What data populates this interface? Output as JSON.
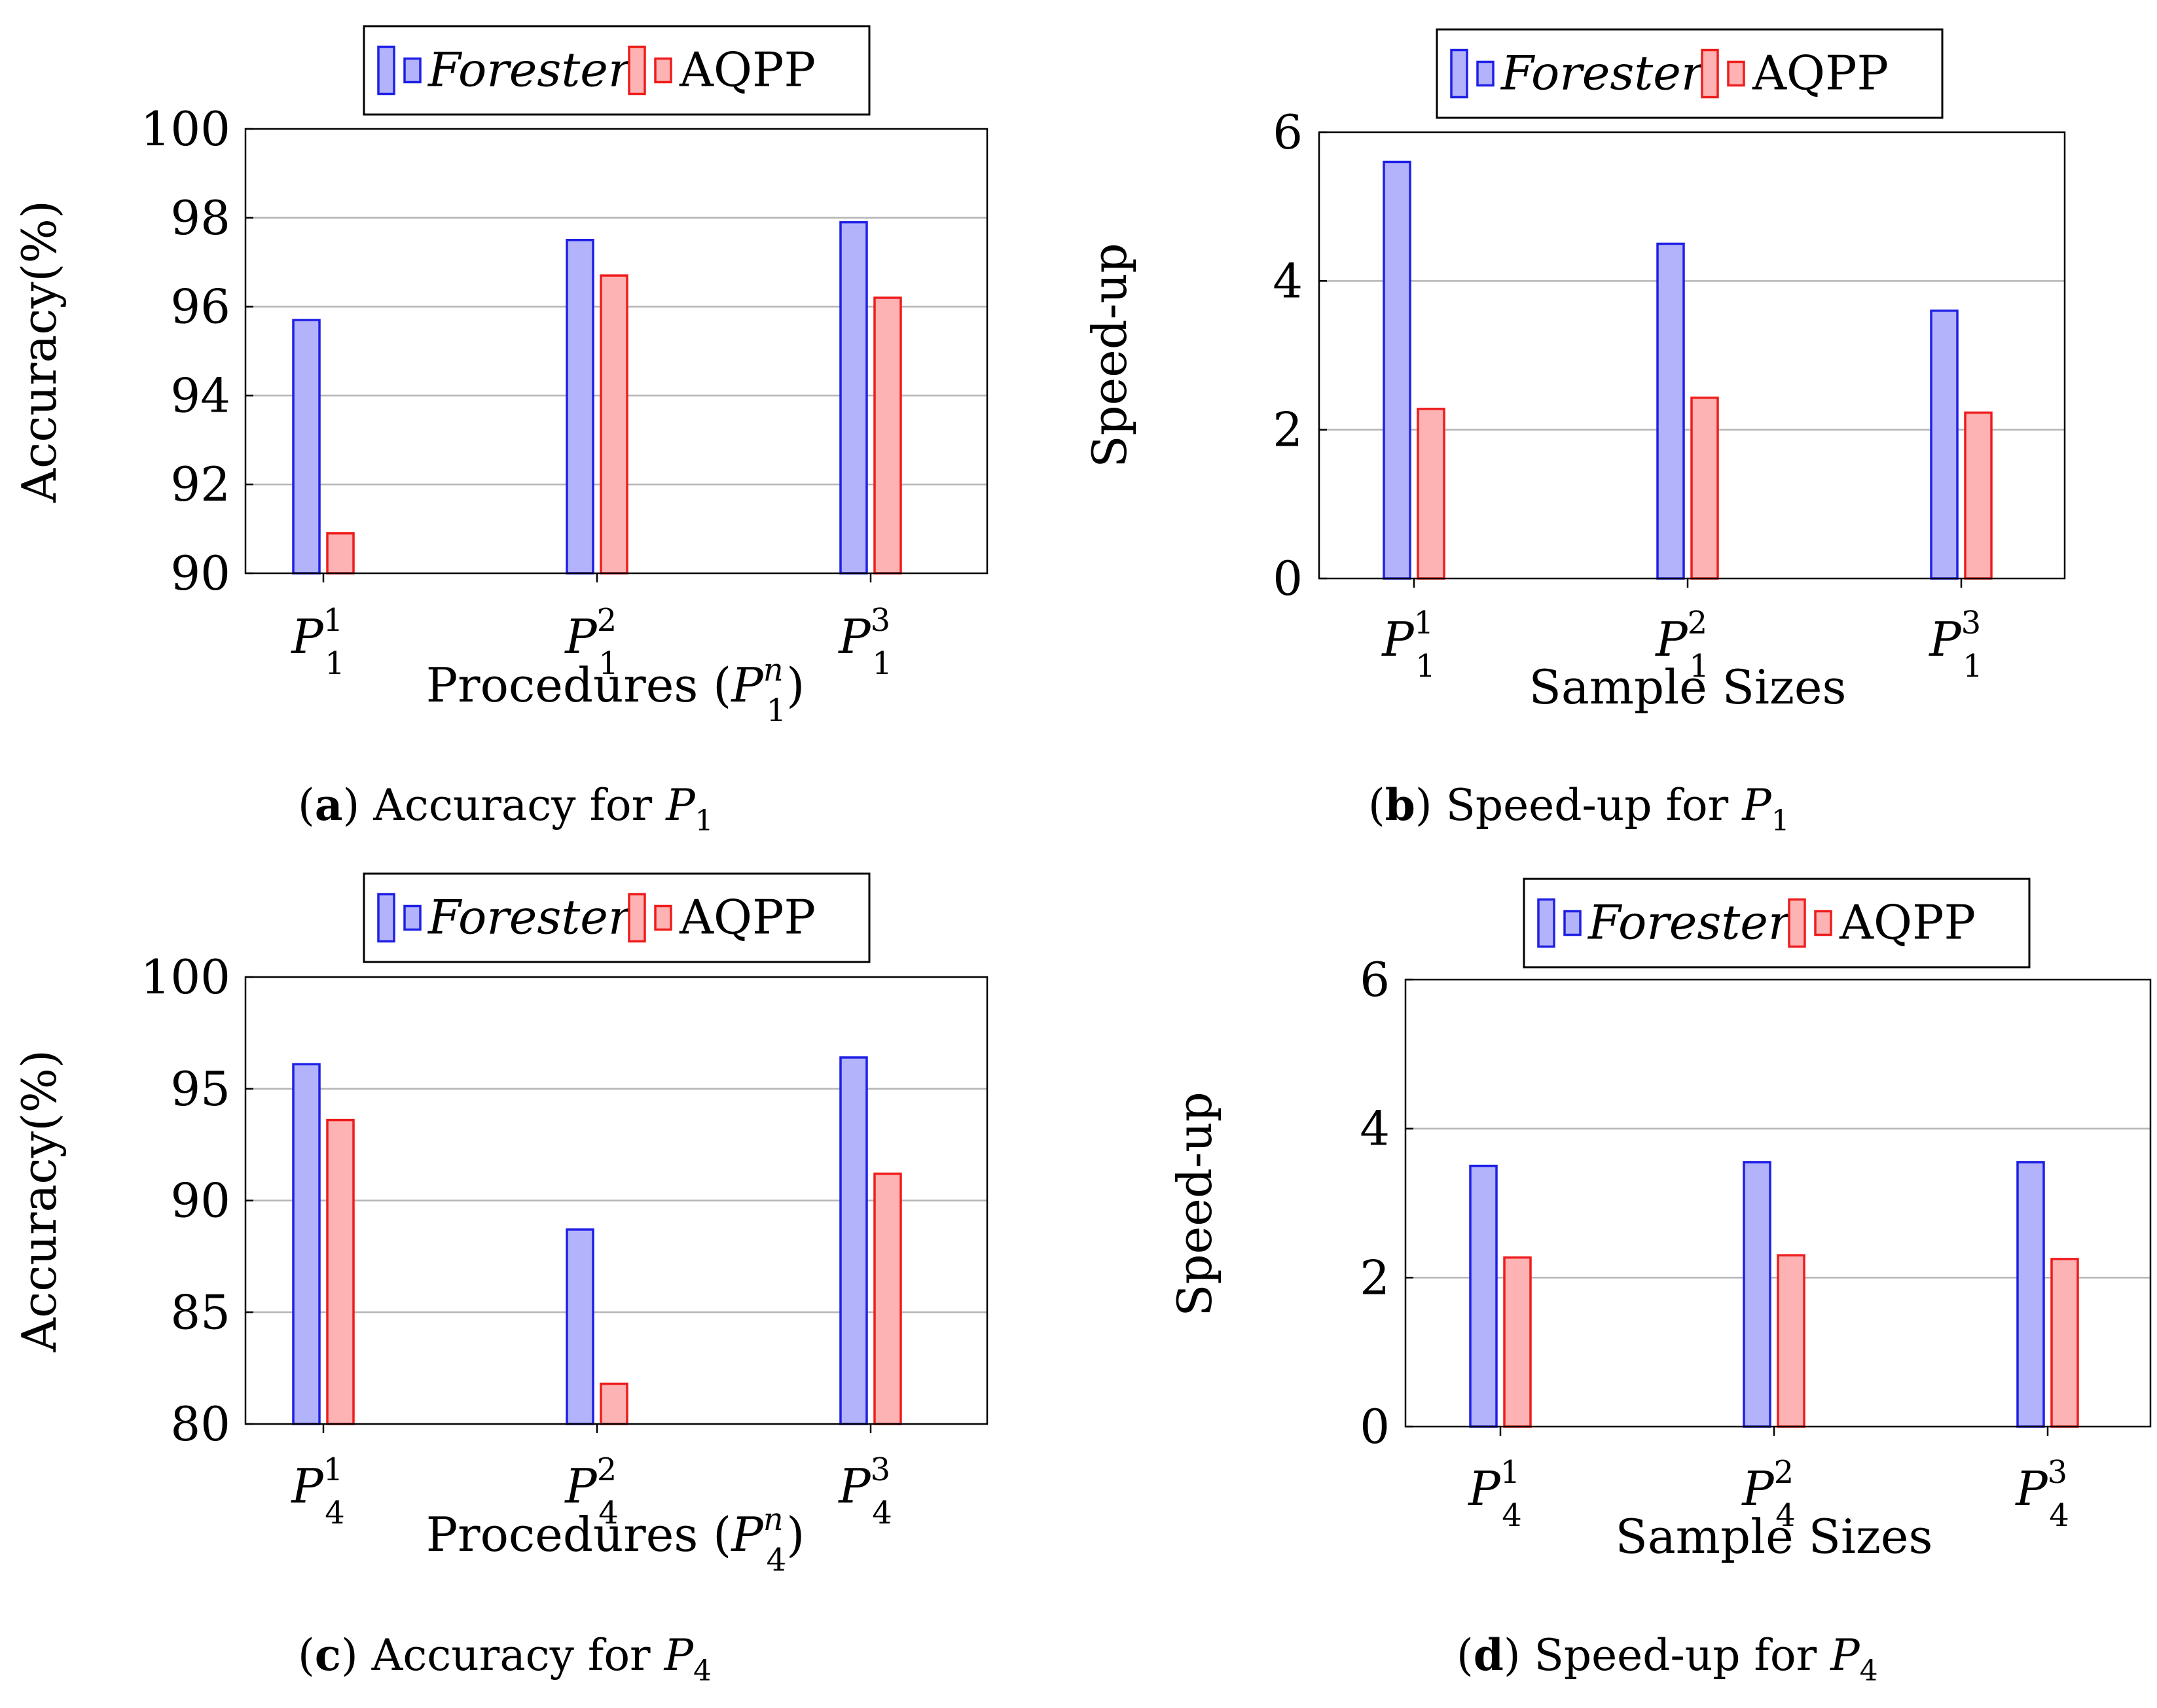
{
  "colors": {
    "forester_fill": "#b3b3fb",
    "forester_stroke": "#1f1fe6",
    "aqpp_fill": "#fdb3b3",
    "aqpp_stroke": "#ee1c1c"
  },
  "chart_data": [
    {
      "type": "bar",
      "panel": "a",
      "caption_letter": "a",
      "caption_text": "Accuracy for",
      "caption_var": "P",
      "caption_sub": "1",
      "legend": [
        "Forester",
        "AQPP"
      ],
      "categories": [
        "P_1^1",
        "P_1^2",
        "P_1^3"
      ],
      "category_base": "P",
      "category_sub": "1",
      "category_sup": [
        "1",
        "2",
        "3"
      ],
      "series": [
        {
          "name": "Forester",
          "values": [
            95.7,
            97.5,
            97.9
          ]
        },
        {
          "name": "AQPP",
          "values": [
            90.9,
            96.7,
            96.2
          ]
        }
      ],
      "ylabel": "Accuracy(%)",
      "xlabel_text": "Procedures (",
      "xlabel_var": "P",
      "xlabel_sub": "1",
      "xlabel_sup": "n",
      "xlabel_close": ")",
      "ylim": [
        90,
        100
      ],
      "yticks": [
        "90",
        "92",
        "94",
        "96",
        "98",
        "100"
      ],
      "grid": true
    },
    {
      "type": "bar",
      "panel": "b",
      "caption_letter": "b",
      "caption_text": "Speed-up for",
      "caption_var": "P",
      "caption_sub": "1",
      "legend": [
        "Forester",
        "AQPP"
      ],
      "categories": [
        "P_1^1",
        "P_1^2",
        "P_1^3"
      ],
      "category_base": "P",
      "category_sub": "1",
      "category_sup": [
        "1",
        "2",
        "3"
      ],
      "series": [
        {
          "name": "Forester",
          "values": [
            5.6,
            4.5,
            3.6
          ]
        },
        {
          "name": "AQPP",
          "values": [
            2.28,
            2.43,
            2.23
          ]
        }
      ],
      "ylabel": "Speed-up",
      "xlabel": "Sample Sizes",
      "ylim": [
        0,
        6
      ],
      "yticks": [
        "0",
        "2",
        "4",
        "6"
      ],
      "grid": true
    },
    {
      "type": "bar",
      "panel": "c",
      "caption_letter": "c",
      "caption_text": "Accuracy for",
      "caption_var": "P",
      "caption_sub": "4",
      "legend": [
        "Forester",
        "AQPP"
      ],
      "categories": [
        "P_4^1",
        "P_4^2",
        "P_4^3"
      ],
      "category_base": "P",
      "category_sub": "4",
      "category_sup": [
        "1",
        "2",
        "3"
      ],
      "series": [
        {
          "name": "Forester",
          "values": [
            96.1,
            88.7,
            96.4
          ]
        },
        {
          "name": "AQPP",
          "values": [
            93.6,
            81.8,
            91.2
          ]
        }
      ],
      "ylabel": "Accuracy(%)",
      "xlabel_text": "Procedures (",
      "xlabel_var": "P",
      "xlabel_sub": "4",
      "xlabel_sup": "n",
      "xlabel_close": ")",
      "ylim": [
        80,
        100
      ],
      "yticks": [
        "80",
        "85",
        "90",
        "95",
        "100"
      ],
      "grid": true
    },
    {
      "type": "bar",
      "panel": "d",
      "caption_letter": "d",
      "caption_text": "Speed-up for",
      "caption_var": "P",
      "caption_sub": "4",
      "legend": [
        "Forester",
        "AQPP"
      ],
      "categories": [
        "P_4^1",
        "P_4^2",
        "P_4^3"
      ],
      "category_base": "P",
      "category_sub": "4",
      "category_sup": [
        "1",
        "2",
        "3"
      ],
      "series": [
        {
          "name": "Forester",
          "values": [
            3.5,
            3.55,
            3.55
          ]
        },
        {
          "name": "AQPP",
          "values": [
            2.27,
            2.3,
            2.25
          ]
        }
      ],
      "ylabel": "Speed-up",
      "xlabel": "Sample Sizes",
      "ylim": [
        0,
        6
      ],
      "yticks": [
        "0",
        "2",
        "4",
        "6"
      ],
      "grid": true
    }
  ]
}
